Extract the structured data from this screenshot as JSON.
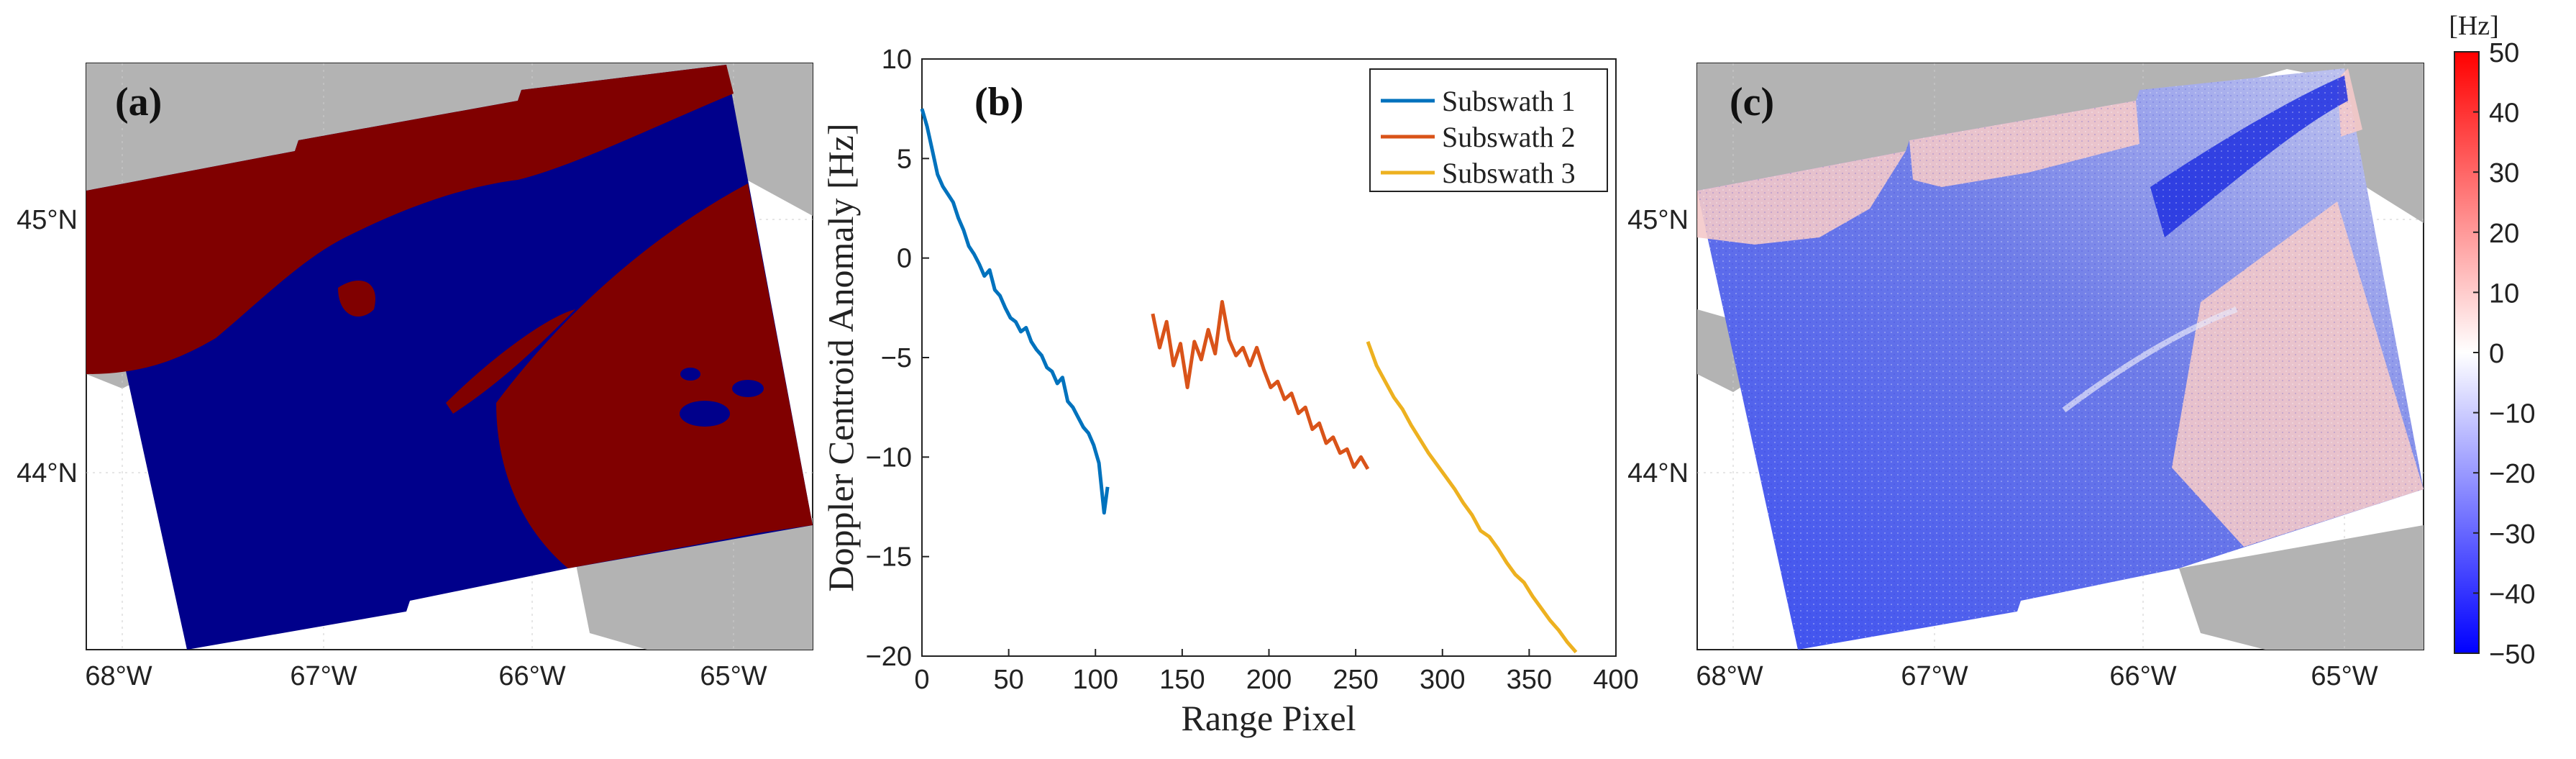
{
  "figure": {
    "panels": [
      "(a)",
      "(b)",
      "(c)"
    ],
    "map_x_ticks": [
      "68°W",
      "67°W",
      "66°W",
      "65°W"
    ],
    "map_y_ticks": [
      "45°N",
      "44°N"
    ],
    "colorbar": {
      "unit": "[Hz]",
      "ticks": [
        "50",
        "40",
        "30",
        "20",
        "10",
        "0",
        "−10",
        "−20",
        "−30",
        "−40",
        "−50"
      ],
      "min": -50,
      "max": 50,
      "colors": {
        "low": "#0000ff",
        "mid": "#ffffff",
        "high": "#ff0000"
      }
    },
    "map_colors": {
      "land": "#b3b3b3",
      "class_a": "#800000",
      "class_b": "#00008b"
    }
  },
  "chart_data": {
    "type": "line",
    "panel": "(b)",
    "xlabel": "Range Pixel",
    "ylabel": "Doppler Centroid Anomaly [Hz]",
    "xlim": [
      0,
      400
    ],
    "ylim": [
      -20,
      10
    ],
    "xticks": [
      "0",
      "50",
      "100",
      "150",
      "200",
      "250",
      "300",
      "350",
      "400"
    ],
    "yticks": [
      "10",
      "5",
      "0",
      "−5",
      "−10",
      "−15",
      "−20"
    ],
    "legend_position": "top-right",
    "series": [
      {
        "name": "Subswath 1",
        "color": "#0072bd",
        "x": [
          0,
          3,
          6,
          9,
          12,
          15,
          18,
          21,
          24,
          27,
          30,
          33,
          36,
          39,
          42,
          45,
          48,
          51,
          54,
          57,
          60,
          63,
          66,
          69,
          72,
          75,
          78,
          81,
          84,
          87,
          90,
          93,
          96,
          99,
          102,
          105,
          107
        ],
        "y": [
          7.5,
          6.6,
          5.4,
          4.2,
          3.6,
          3.2,
          2.8,
          2.0,
          1.4,
          0.6,
          0.2,
          -0.3,
          -0.9,
          -0.6,
          -1.6,
          -1.9,
          -2.5,
          -3.0,
          -3.2,
          -3.7,
          -3.5,
          -4.2,
          -4.6,
          -4.9,
          -5.5,
          -5.7,
          -6.3,
          -6.0,
          -7.2,
          -7.5,
          -8.0,
          -8.5,
          -8.8,
          -9.4,
          -10.3,
          -12.8,
          -11.5
        ]
      },
      {
        "name": "Subswath 2",
        "color": "#d95319",
        "x": [
          133,
          137,
          141,
          145,
          149,
          153,
          157,
          161,
          165,
          169,
          173,
          177,
          181,
          185,
          189,
          193,
          197,
          201,
          205,
          209,
          213,
          217,
          221,
          225,
          229,
          233,
          237,
          241,
          245,
          249,
          253,
          257
        ],
        "y": [
          -2.8,
          -4.5,
          -3.2,
          -5.4,
          -4.3,
          -6.5,
          -4.2,
          -5.1,
          -3.6,
          -4.8,
          -2.2,
          -4.1,
          -4.9,
          -4.5,
          -5.4,
          -4.5,
          -5.6,
          -6.5,
          -6.2,
          -7.1,
          -6.8,
          -7.8,
          -7.5,
          -8.6,
          -8.3,
          -9.3,
          -9.0,
          -9.8,
          -9.6,
          -10.5,
          -10.0,
          -10.6
        ]
      },
      {
        "name": "Subswath 3",
        "color": "#edb120",
        "x": [
          257,
          262,
          267,
          272,
          277,
          282,
          287,
          292,
          297,
          302,
          307,
          312,
          317,
          322,
          327,
          332,
          337,
          342,
          347,
          352,
          357,
          362,
          367,
          372,
          377
        ],
        "y": [
          -4.2,
          -5.4,
          -6.2,
          -7.0,
          -7.6,
          -8.4,
          -9.1,
          -9.8,
          -10.4,
          -11.0,
          -11.6,
          -12.3,
          -12.9,
          -13.7,
          -14.0,
          -14.6,
          -15.3,
          -15.9,
          -16.3,
          -17.0,
          -17.6,
          -18.2,
          -18.7,
          -19.3,
          -19.8
        ]
      }
    ]
  }
}
